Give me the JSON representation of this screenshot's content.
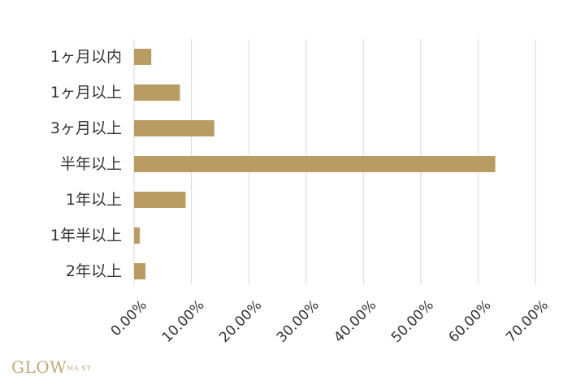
{
  "chart_data": {
    "type": "bar",
    "orientation": "horizontal",
    "categories": [
      "1ヶ月以内",
      "1ヶ月以上",
      "3ヶ月以上",
      "半年以上",
      "1年以上",
      "1年半以上",
      "2年以上"
    ],
    "values": [
      3.0,
      8.0,
      14.0,
      63.0,
      9.0,
      1.0,
      2.0
    ],
    "xlim": [
      0,
      70
    ],
    "x_ticks": [
      0,
      10,
      20,
      30,
      40,
      50,
      60,
      70
    ],
    "x_tick_labels": [
      "0.00%",
      "10.00%",
      "20.00%",
      "30.00%",
      "40.00%",
      "50.00%",
      "60.00%",
      "70.00%"
    ],
    "title": "",
    "xlabel": "",
    "ylabel": "",
    "grid": "vertical",
    "legend": "none",
    "bar_color": "#b89c63",
    "grid_color": "#d9d9d9"
  },
  "branding": {
    "logo_text": "GLOW",
    "logo_sub": "MA ST"
  }
}
